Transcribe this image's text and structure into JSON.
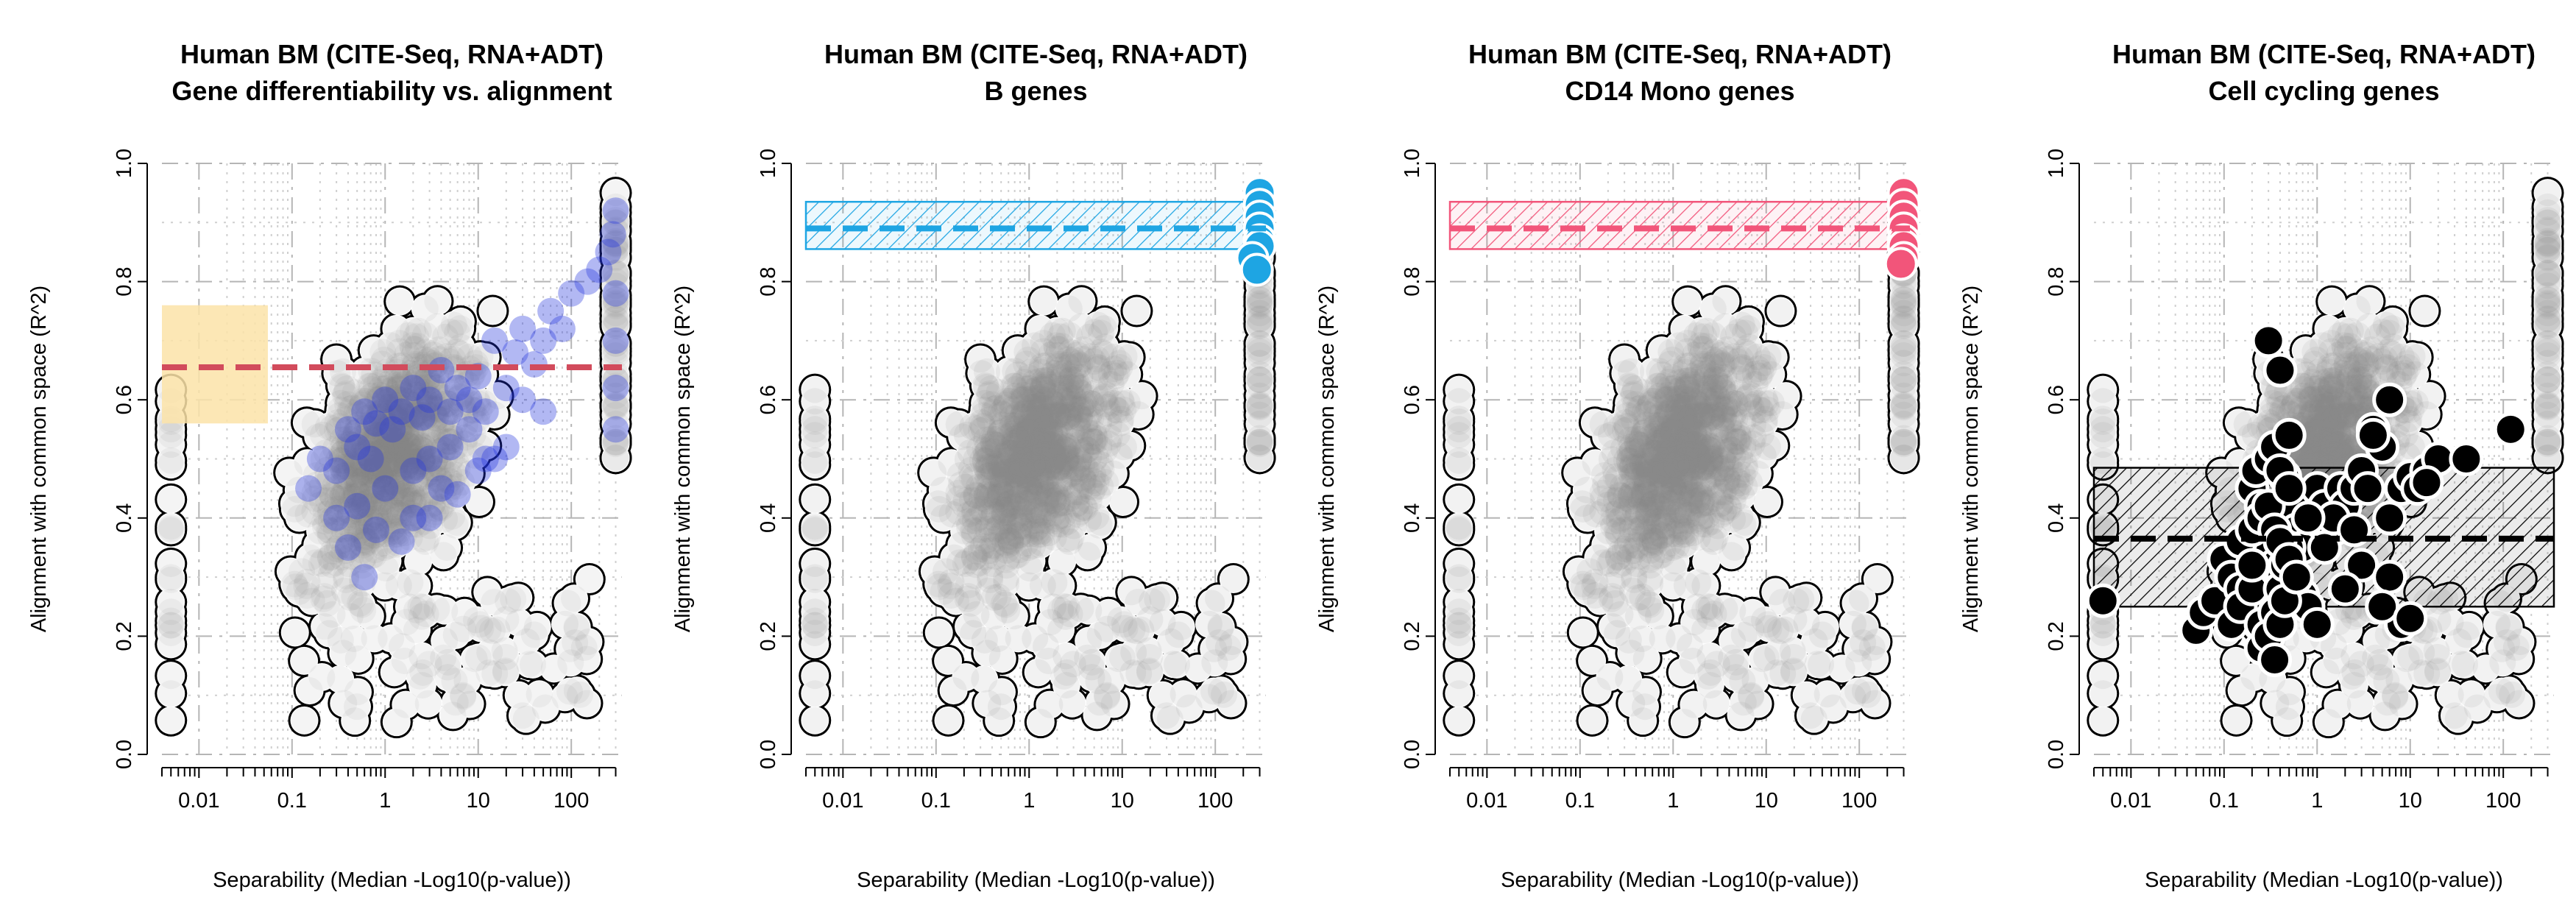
{
  "chart_data": [
    {
      "type": "scatter",
      "title": "Human BM (CITE-Seq, RNA+ADT)",
      "subtitle": "Gene differentiability vs. alignment",
      "xlabel": "Separability (Median -Log10(p-value))",
      "ylabel": "Alignment with common space (R^2)",
      "x_scale": "log",
      "xlim": [
        0.004,
        350
      ],
      "ylim": [
        0.0,
        1.0
      ],
      "x_ticks": [
        "0.01",
        "0.1",
        "1",
        "10",
        "100"
      ],
      "y_ticks": [
        "0.0",
        "0.2",
        "0.4",
        "0.6",
        "0.8",
        "1.0"
      ],
      "grid": true,
      "highlight_color": "#2233dd",
      "reference_band": {
        "ymin": 0.56,
        "ymax": 0.76,
        "x_to": 0.055,
        "color": "#fbe3a8"
      },
      "reference_line": {
        "y": 0.655,
        "color": "#d24b5c",
        "dashed": true
      },
      "highlight_points": {
        "x": [
          0.15,
          0.2,
          0.3,
          0.4,
          0.5,
          0.6,
          0.7,
          0.8,
          1.0,
          1.2,
          1.5,
          2,
          2.5,
          3,
          4,
          5,
          6,
          8,
          10,
          12,
          15,
          20,
          25,
          30,
          40,
          50,
          60,
          80,
          100,
          150,
          200,
          250,
          280,
          300,
          300,
          300,
          300,
          300,
          0.3,
          0.5,
          1,
          2,
          3,
          5,
          8,
          15,
          30,
          0.4,
          0.8,
          2,
          4,
          10,
          20,
          50,
          0.6,
          1.5,
          3,
          6,
          12
        ],
        "y": [
          0.45,
          0.5,
          0.48,
          0.55,
          0.52,
          0.58,
          0.5,
          0.56,
          0.6,
          0.55,
          0.58,
          0.62,
          0.57,
          0.6,
          0.65,
          0.58,
          0.62,
          0.6,
          0.64,
          0.58,
          0.7,
          0.62,
          0.68,
          0.72,
          0.66,
          0.7,
          0.75,
          0.72,
          0.78,
          0.8,
          0.82,
          0.85,
          0.88,
          0.92,
          0.78,
          0.7,
          0.62,
          0.55,
          0.4,
          0.42,
          0.45,
          0.48,
          0.5,
          0.52,
          0.55,
          0.5,
          0.6,
          0.35,
          0.38,
          0.4,
          0.45,
          0.48,
          0.52,
          0.58,
          0.3,
          0.36,
          0.4,
          0.44,
          0.5
        ]
      }
    },
    {
      "type": "scatter",
      "title": "Human BM (CITE-Seq, RNA+ADT)",
      "subtitle": "B genes",
      "xlabel": "Separability (Median -Log10(p-value))",
      "ylabel": "Alignment with common space (R^2)",
      "x_scale": "log",
      "xlim": [
        0.004,
        350
      ],
      "ylim": [
        0.0,
        1.0
      ],
      "x_ticks": [
        "0.01",
        "0.1",
        "1",
        "10",
        "100"
      ],
      "y_ticks": [
        "0.0",
        "0.2",
        "0.4",
        "0.6",
        "0.8",
        "1.0"
      ],
      "grid": true,
      "highlight_color": "#1ea5e3",
      "reference_band": {
        "ymin": 0.855,
        "ymax": 0.935,
        "color": "#1ea5e3",
        "hatched": true
      },
      "reference_line": {
        "y": 0.89,
        "color": "#1ea5e3",
        "dashed": true
      },
      "highlight_points": {
        "x": [
          300,
          300,
          300,
          300,
          300,
          300,
          250,
          280
        ],
        "y": [
          0.95,
          0.93,
          0.91,
          0.89,
          0.87,
          0.86,
          0.84,
          0.82
        ]
      }
    },
    {
      "type": "scatter",
      "title": "Human BM (CITE-Seq, RNA+ADT)",
      "subtitle": "CD14 Mono genes",
      "xlabel": "Separability (Median -Log10(p-value))",
      "ylabel": "Alignment with common space (R^2)",
      "x_scale": "log",
      "xlim": [
        0.004,
        350
      ],
      "ylim": [
        0.0,
        1.0
      ],
      "x_ticks": [
        "0.01",
        "0.1",
        "1",
        "10",
        "100"
      ],
      "y_ticks": [
        "0.0",
        "0.2",
        "0.4",
        "0.6",
        "0.8",
        "1.0"
      ],
      "grid": true,
      "highlight_color": "#f2557a",
      "reference_band": {
        "ymin": 0.855,
        "ymax": 0.935,
        "color": "#f2557a",
        "hatched": true
      },
      "reference_line": {
        "y": 0.89,
        "color": "#f2557a",
        "dashed": true
      },
      "highlight_points": {
        "x": [
          300,
          300,
          300,
          300,
          300,
          300,
          300,
          280
        ],
        "y": [
          0.95,
          0.93,
          0.91,
          0.89,
          0.87,
          0.86,
          0.84,
          0.83
        ]
      }
    },
    {
      "type": "scatter",
      "title": "Human BM (CITE-Seq, RNA+ADT)",
      "subtitle": "Cell cycling genes",
      "xlabel": "Separability (Median -Log10(p-value))",
      "ylabel": "Alignment with common space (R^2)",
      "x_scale": "log",
      "xlim": [
        0.004,
        350
      ],
      "ylim": [
        0.0,
        1.0
      ],
      "x_ticks": [
        "0.01",
        "0.1",
        "1",
        "10",
        "100"
      ],
      "y_ticks": [
        "0.0",
        "0.2",
        "0.4",
        "0.6",
        "0.8",
        "1.0"
      ],
      "grid": true,
      "highlight_color": "#000000",
      "reference_band": {
        "ymin": 0.25,
        "ymax": 0.485,
        "color": "#000000",
        "hatched": true
      },
      "reference_line": {
        "y": 0.365,
        "color": "#000000",
        "dashed": true
      },
      "highlight_points": {
        "x": [
          0.005,
          0.05,
          0.06,
          0.08,
          0.1,
          0.12,
          0.15,
          0.18,
          0.2,
          0.22,
          0.25,
          0.28,
          0.3,
          0.32,
          0.35,
          0.38,
          0.4,
          0.42,
          0.45,
          0.5,
          0.55,
          0.6,
          0.7,
          0.8,
          1.0,
          1.2,
          1.5,
          1.8,
          2.0,
          2.5,
          3.0,
          3.5,
          4.0,
          5.0,
          6.0,
          8.0,
          10,
          12,
          15,
          20,
          40,
          120,
          0.12,
          0.15,
          0.2,
          0.25,
          0.3,
          0.35,
          0.4,
          0.45,
          0.5,
          0.6,
          0.7,
          0.8,
          1.0,
          0.15,
          0.2,
          0.25,
          0.3,
          0.35,
          0.4,
          0.5,
          0.6,
          0.25,
          0.3,
          0.35,
          0.4,
          0.45,
          0.3,
          0.35,
          0.4,
          0.5,
          1.5,
          3,
          8,
          0.2,
          0.6,
          1.2,
          2.5,
          6,
          0.5,
          0.8,
          2,
          5,
          10,
          4,
          6,
          15,
          0.3,
          0.4
        ],
        "y": [
          0.26,
          0.21,
          0.24,
          0.26,
          0.33,
          0.3,
          0.28,
          0.25,
          0.45,
          0.48,
          0.42,
          0.38,
          0.35,
          0.3,
          0.32,
          0.28,
          0.25,
          0.3,
          0.47,
          0.45,
          0.42,
          0.38,
          0.35,
          0.4,
          0.45,
          0.42,
          0.38,
          0.45,
          0.42,
          0.45,
          0.48,
          0.45,
          0.55,
          0.52,
          0.4,
          0.45,
          0.47,
          0.45,
          0.48,
          0.5,
          0.5,
          0.55,
          0.22,
          0.25,
          0.28,
          0.22,
          0.2,
          0.24,
          0.28,
          0.32,
          0.35,
          0.3,
          0.27,
          0.25,
          0.22,
          0.36,
          0.38,
          0.4,
          0.42,
          0.38,
          0.36,
          0.33,
          0.3,
          0.18,
          0.2,
          0.16,
          0.22,
          0.26,
          0.5,
          0.52,
          0.48,
          0.45,
          0.4,
          0.32,
          0.22,
          0.32,
          0.3,
          0.35,
          0.38,
          0.3,
          0.54,
          0.4,
          0.28,
          0.25,
          0.23,
          0.54,
          0.6,
          0.46,
          0.7,
          0.65
        ]
      }
    }
  ]
}
